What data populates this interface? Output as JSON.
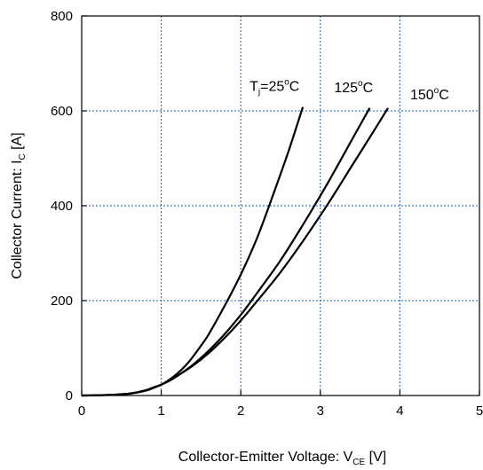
{
  "chart_data": {
    "type": "line",
    "xlabel": {
      "main": "Collector-Emitter Voltage: V",
      "sub": "CE",
      "unit": " [V]"
    },
    "ylabel": {
      "main": "Collector Current: I",
      "sub": "C",
      "unit": " [A]"
    },
    "xlim": [
      0,
      5
    ],
    "ylim": [
      0,
      800
    ],
    "xticks": [
      0,
      1,
      2,
      3,
      4,
      5
    ],
    "yticks": [
      0,
      200,
      400,
      600,
      800
    ],
    "grid": true,
    "grid_style": "dotted",
    "grid_color": "#1a5fb4",
    "line_color": "#000000",
    "series": [
      {
        "label": {
          "pre": "T",
          "sub": "j",
          "mid": "=25",
          "sup": "o",
          "post": "C"
        },
        "x": [
          0.0,
          0.2,
          0.4,
          0.6,
          0.7,
          0.8,
          0.9,
          1.0,
          1.1,
          1.2,
          1.3,
          1.4,
          1.5,
          1.6,
          1.8,
          2.0,
          2.2,
          2.4,
          2.6,
          2.78
        ],
        "y": [
          0,
          0.5,
          1.5,
          4,
          7,
          11,
          17,
          23,
          33,
          46,
          62,
          82,
          105,
          130,
          190,
          255,
          330,
          420,
          515,
          608
        ]
      },
      {
        "label": {
          "pre": "125",
          "sup": "o",
          "post": "C"
        },
        "x": [
          0.0,
          0.2,
          0.4,
          0.6,
          0.8,
          0.9,
          1.0,
          1.1,
          1.2,
          1.4,
          1.6,
          1.8,
          2.0,
          2.2,
          2.5,
          2.8,
          3.1,
          3.4,
          3.62
        ],
        "y": [
          0,
          0.5,
          1.5,
          4,
          10,
          16,
          23,
          31,
          41,
          65,
          95,
          130,
          170,
          215,
          285,
          365,
          450,
          540,
          606
        ]
      },
      {
        "label": {
          "pre": "150",
          "sup": "o",
          "post": "C"
        },
        "x": [
          0.0,
          0.2,
          0.4,
          0.6,
          0.8,
          0.9,
          1.0,
          1.1,
          1.2,
          1.4,
          1.6,
          1.8,
          2.0,
          2.2,
          2.5,
          2.8,
          3.1,
          3.4,
          3.7,
          3.85
        ],
        "y": [
          0,
          0.5,
          1.5,
          4,
          10,
          16,
          23,
          31,
          41,
          63,
          90,
          122,
          158,
          198,
          260,
          330,
          405,
          485,
          565,
          606
        ]
      }
    ]
  }
}
